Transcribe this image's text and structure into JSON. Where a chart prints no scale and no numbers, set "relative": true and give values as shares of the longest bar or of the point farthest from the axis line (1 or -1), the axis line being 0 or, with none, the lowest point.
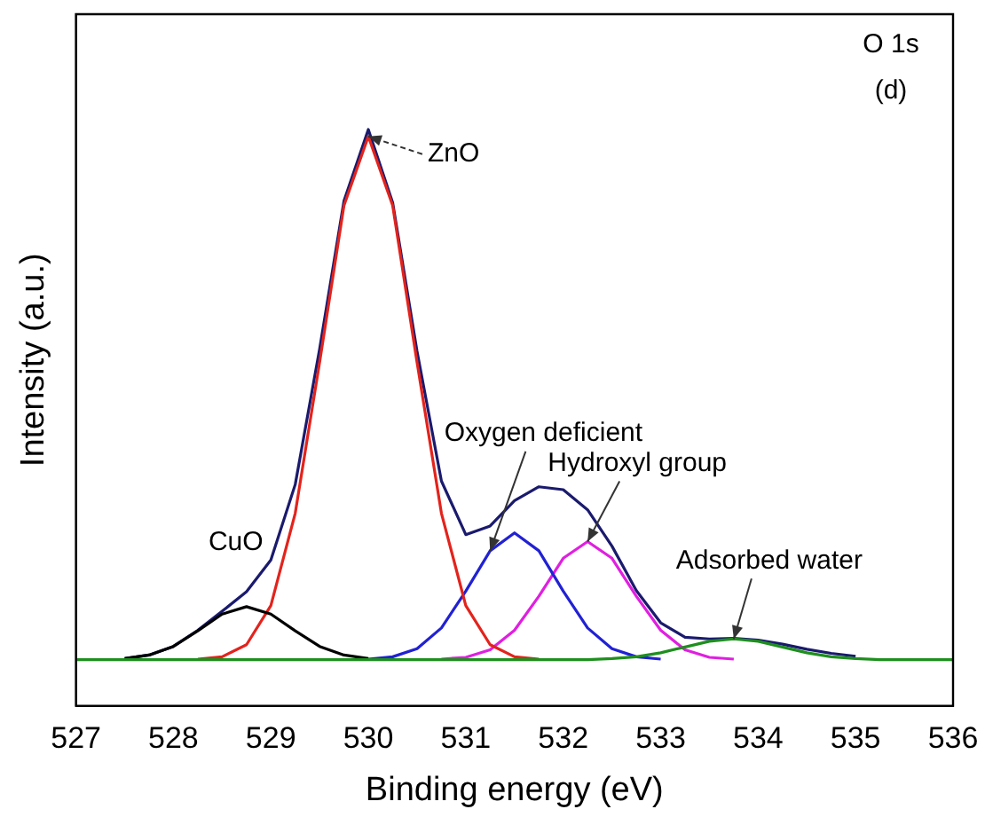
{
  "chart_data": {
    "type": "line",
    "xlabel": "Binding energy (eV)",
    "ylabel": "Intensity (a.u.)",
    "relative": true,
    "legend": false,
    "marker": "none",
    "line_style": "solid",
    "x": [
      527,
      527.25,
      527.5,
      527.75,
      528,
      528.25,
      528.5,
      528.75,
      529,
      529.25,
      529.5,
      529.75,
      530,
      530.25,
      530.5,
      530.75,
      531,
      531.25,
      531.5,
      531.75,
      532,
      532.25,
      532.5,
      532.75,
      533,
      533.25,
      533.5,
      533.75,
      534,
      534.25,
      534.5,
      534.75,
      535,
      535.25,
      535.5,
      535.75,
      536
    ],
    "xlim": [
      527,
      536
    ],
    "xticks": [
      527,
      528,
      529,
      530,
      531,
      532,
      533,
      534,
      535,
      536
    ],
    "series": [
      {
        "color": "#1e8f1e",
        "values": [
          0.08,
          0.08,
          0.08,
          0.08,
          0.08,
          0.08,
          0.08,
          0.08,
          0.08,
          0.08,
          0.08,
          0.08,
          0.08,
          0.08,
          0.08,
          0.08,
          0.08,
          0.08,
          0.08,
          0.08,
          0.08,
          0.08,
          0.082,
          0.085,
          0.092,
          0.102,
          0.112,
          0.116,
          0.112,
          0.102,
          0.092,
          0.085,
          0.082,
          0.08,
          0.08,
          0.08,
          0.08
        ]
      },
      {
        "color": "#000000",
        "values": [
          null,
          null,
          0.082,
          0.088,
          0.103,
          0.13,
          0.159,
          0.172,
          0.159,
          0.13,
          0.103,
          0.088,
          0.082,
          null,
          null,
          null,
          null,
          null,
          null,
          null,
          null,
          null,
          null,
          null,
          null,
          null,
          null,
          null,
          null,
          null,
          null,
          null,
          null,
          null,
          null,
          null,
          null
        ]
      },
      {
        "color": "#e3231c",
        "values": [
          null,
          null,
          null,
          null,
          null,
          0.081,
          0.085,
          0.106,
          0.174,
          0.334,
          0.596,
          0.868,
          0.988,
          0.868,
          0.596,
          0.334,
          0.174,
          0.106,
          0.085,
          0.081,
          null,
          null,
          null,
          null,
          null,
          null,
          null,
          null,
          null,
          null,
          null,
          null,
          null,
          null,
          null,
          null,
          null
        ]
      },
      {
        "color": "#2121d4",
        "values": [
          null,
          null,
          null,
          null,
          null,
          null,
          null,
          null,
          null,
          null,
          null,
          null,
          0.081,
          0.085,
          0.099,
          0.135,
          0.199,
          0.269,
          0.3,
          0.269,
          0.199,
          0.135,
          0.099,
          0.085,
          0.081,
          null,
          null,
          null,
          null,
          null,
          null,
          null,
          null,
          null,
          null,
          null,
          null
        ]
      },
      {
        "color": "#e01fe0",
        "values": [
          null,
          null,
          null,
          null,
          null,
          null,
          null,
          null,
          null,
          null,
          null,
          null,
          null,
          null,
          null,
          0.081,
          0.084,
          0.097,
          0.131,
          0.19,
          0.256,
          0.285,
          0.256,
          0.19,
          0.131,
          0.097,
          0.084,
          0.081,
          null,
          null,
          null,
          null,
          null,
          null,
          null,
          null,
          null
        ]
      },
      {
        "color": "#1a1a6e",
        "values": [
          null,
          null,
          0.082,
          0.088,
          0.103,
          0.131,
          0.164,
          0.198,
          0.253,
          0.384,
          0.619,
          0.876,
          1.0,
          0.873,
          0.615,
          0.39,
          0.297,
          0.312,
          0.356,
          0.38,
          0.375,
          0.34,
          0.277,
          0.2,
          0.144,
          0.119,
          0.116,
          0.117,
          0.114,
          0.107,
          0.098,
          0.091,
          0.086,
          null,
          null,
          null,
          null
        ]
      }
    ],
    "annotations": [
      "O 1s",
      "(d)",
      {
        "text": "ZnO",
        "x": 530,
        "y": 0.988
      },
      {
        "text": "CuO",
        "x": 528.75,
        "y": 0.172
      },
      {
        "text": "Oxygen deficient",
        "x": 531.25,
        "y": 0.269
      },
      {
        "text": "Hydroxyl group",
        "x": 532.25,
        "y": 0.285
      },
      {
        "text": "Adsorbed water",
        "x": 533.75,
        "y": 0.116
      }
    ]
  }
}
